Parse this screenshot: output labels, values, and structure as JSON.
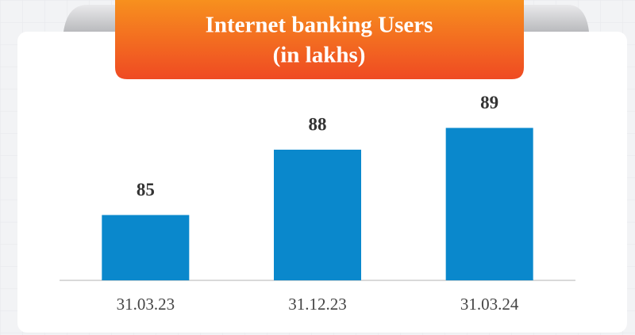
{
  "chart_data": {
    "type": "bar",
    "title": [
      "Internet banking Users",
      "(in lakhs)"
    ],
    "categories": [
      "31.03.23",
      "31.12.23",
      "31.03.24"
    ],
    "values": [
      85,
      88,
      89
    ],
    "color": "#0a88cc",
    "ylim": [
      82,
      90
    ]
  }
}
